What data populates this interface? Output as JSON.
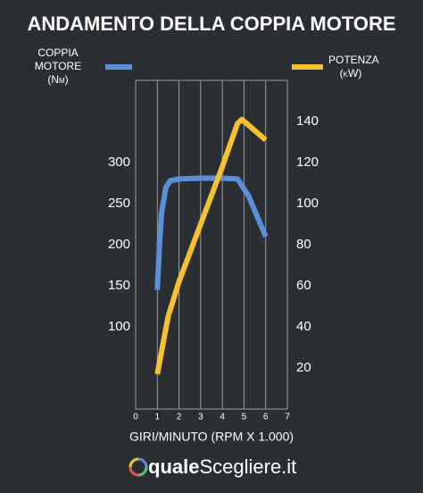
{
  "chart_data": {
    "type": "line",
    "title": "ANDAMENTO DELLA COPPIA MOTORE",
    "x_label": "GIRI/MINUTO (RPM X 1.000)",
    "xlim": [
      0,
      7
    ],
    "xticks": [
      0,
      1,
      2,
      3,
      4,
      5,
      6,
      7
    ],
    "ylim": [
      0,
      400
    ],
    "yticks": [
      100,
      150,
      200,
      250,
      300
    ],
    "y2lim": [
      0,
      160
    ],
    "y2ticks": [
      20,
      40,
      60,
      80,
      100,
      120,
      140
    ],
    "grid": "x",
    "series": [
      {
        "name": "COPPIA MOTORE (Nm)",
        "color": "#5b8fd6",
        "axis": "y",
        "x": [
          1,
          1.1,
          1.2,
          1.4,
          1.6,
          2,
          3,
          4,
          4.7,
          5.2,
          6
        ],
        "values": [
          145,
          200,
          240,
          270,
          278,
          280,
          281,
          281,
          280,
          260,
          210
        ]
      },
      {
        "name": "POTENZA (kW)",
        "color": "#f6c12f",
        "axis": "y2",
        "x": [
          1,
          1.5,
          2,
          3,
          4,
          4.7,
          4.9,
          6
        ],
        "values": [
          17,
          45,
          62,
          90,
          118,
          139,
          141,
          131
        ]
      }
    ]
  },
  "footer": {
    "brand_bold": "quale",
    "brand_rest": "Scegliere.it"
  }
}
